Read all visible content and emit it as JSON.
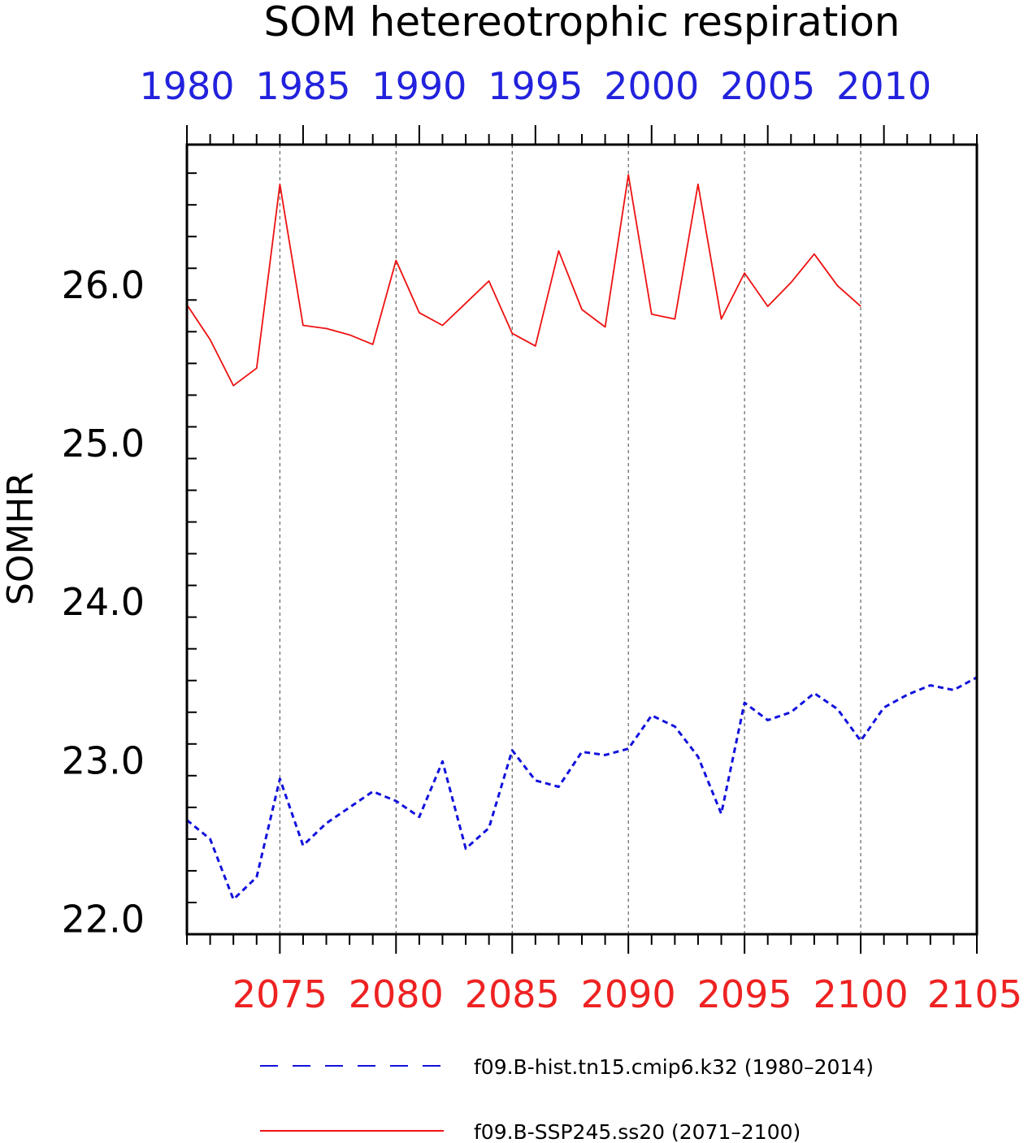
{
  "chart_data": {
    "type": "line",
    "title": "SOM hetereotrophic respiration",
    "ylabel": "SOMHR",
    "xlabel": "",
    "ylim": [
      21.9,
      26.88
    ],
    "yticks": [
      "22.0",
      "23.0",
      "24.0",
      "25.0",
      "26.0"
    ],
    "y_minor_step": 0.2,
    "grid": "vertical dashed lines at labeled years",
    "top_axis": {
      "color": "#2222dd",
      "range": [
        1980,
        2014
      ],
      "ticks": [
        1980,
        1985,
        1990,
        1995,
        2000,
        2005,
        2010
      ],
      "labels": [
        "1980",
        "1985",
        "1990",
        "1995",
        "2000",
        "2005",
        "2010"
      ]
    },
    "bottom_axis": {
      "color": "#ee2222",
      "range": [
        2071,
        2105
      ],
      "ticks": [
        2075,
        2080,
        2085,
        2090,
        2095,
        2100,
        2105
      ],
      "labels": [
        "2075",
        "2080",
        "2085",
        "2090",
        "2095",
        "2100",
        "2105"
      ]
    },
    "grid_years_bottom": [
      2075,
      2080,
      2085,
      2090,
      2095,
      2100
    ],
    "series": [
      {
        "name": "f09.B-hist.tn15.cmip6.k32 (1980–2014)",
        "axis": "top",
        "color": "#1111dd",
        "style": "dashed",
        "x": [
          1980,
          1981,
          1982,
          1983,
          1984,
          1985,
          1986,
          1987,
          1988,
          1989,
          1990,
          1991,
          1992,
          1993,
          1994,
          1995,
          1996,
          1997,
          1998,
          1999,
          2000,
          2001,
          2002,
          2003,
          2004,
          2005,
          2006,
          2007,
          2008,
          2009,
          2010,
          2011,
          2012,
          2013,
          2014
        ],
        "values": [
          22.62,
          22.5,
          22.12,
          22.26,
          22.88,
          22.46,
          22.6,
          22.7,
          22.8,
          22.74,
          22.64,
          22.99,
          22.44,
          22.57,
          23.06,
          22.87,
          22.83,
          23.05,
          23.03,
          23.07,
          23.28,
          23.21,
          23.02,
          22.66,
          23.36,
          23.25,
          23.3,
          23.42,
          23.32,
          23.12,
          23.33,
          23.41,
          23.47,
          23.44,
          23.52
        ]
      },
      {
        "name": "f09.B-SSP245.ss20 (2071–2100)",
        "axis": "bottom",
        "color": "#ee1111",
        "style": "solid",
        "x": [
          2071,
          2072,
          2073,
          2074,
          2075,
          2076,
          2077,
          2078,
          2079,
          2080,
          2081,
          2082,
          2083,
          2084,
          2085,
          2086,
          2087,
          2088,
          2089,
          2090,
          2091,
          2092,
          2093,
          2094,
          2095,
          2096,
          2097,
          2098,
          2099,
          2100
        ],
        "values": [
          25.87,
          25.65,
          25.36,
          25.47,
          26.63,
          25.74,
          25.72,
          25.68,
          25.62,
          26.15,
          25.82,
          25.74,
          25.88,
          26.02,
          25.69,
          25.61,
          26.21,
          25.84,
          25.73,
          26.69,
          25.81,
          25.78,
          26.63,
          25.78,
          26.07,
          25.86,
          26.01,
          26.19,
          25.99,
          25.86
        ]
      }
    ],
    "legend": {
      "placement": "bottom",
      "entries": [
        "f09.B-hist.tn15.cmip6.k32 (1980–2014)",
        "f09.B-SSP245.ss20 (2071–2100)"
      ]
    }
  }
}
